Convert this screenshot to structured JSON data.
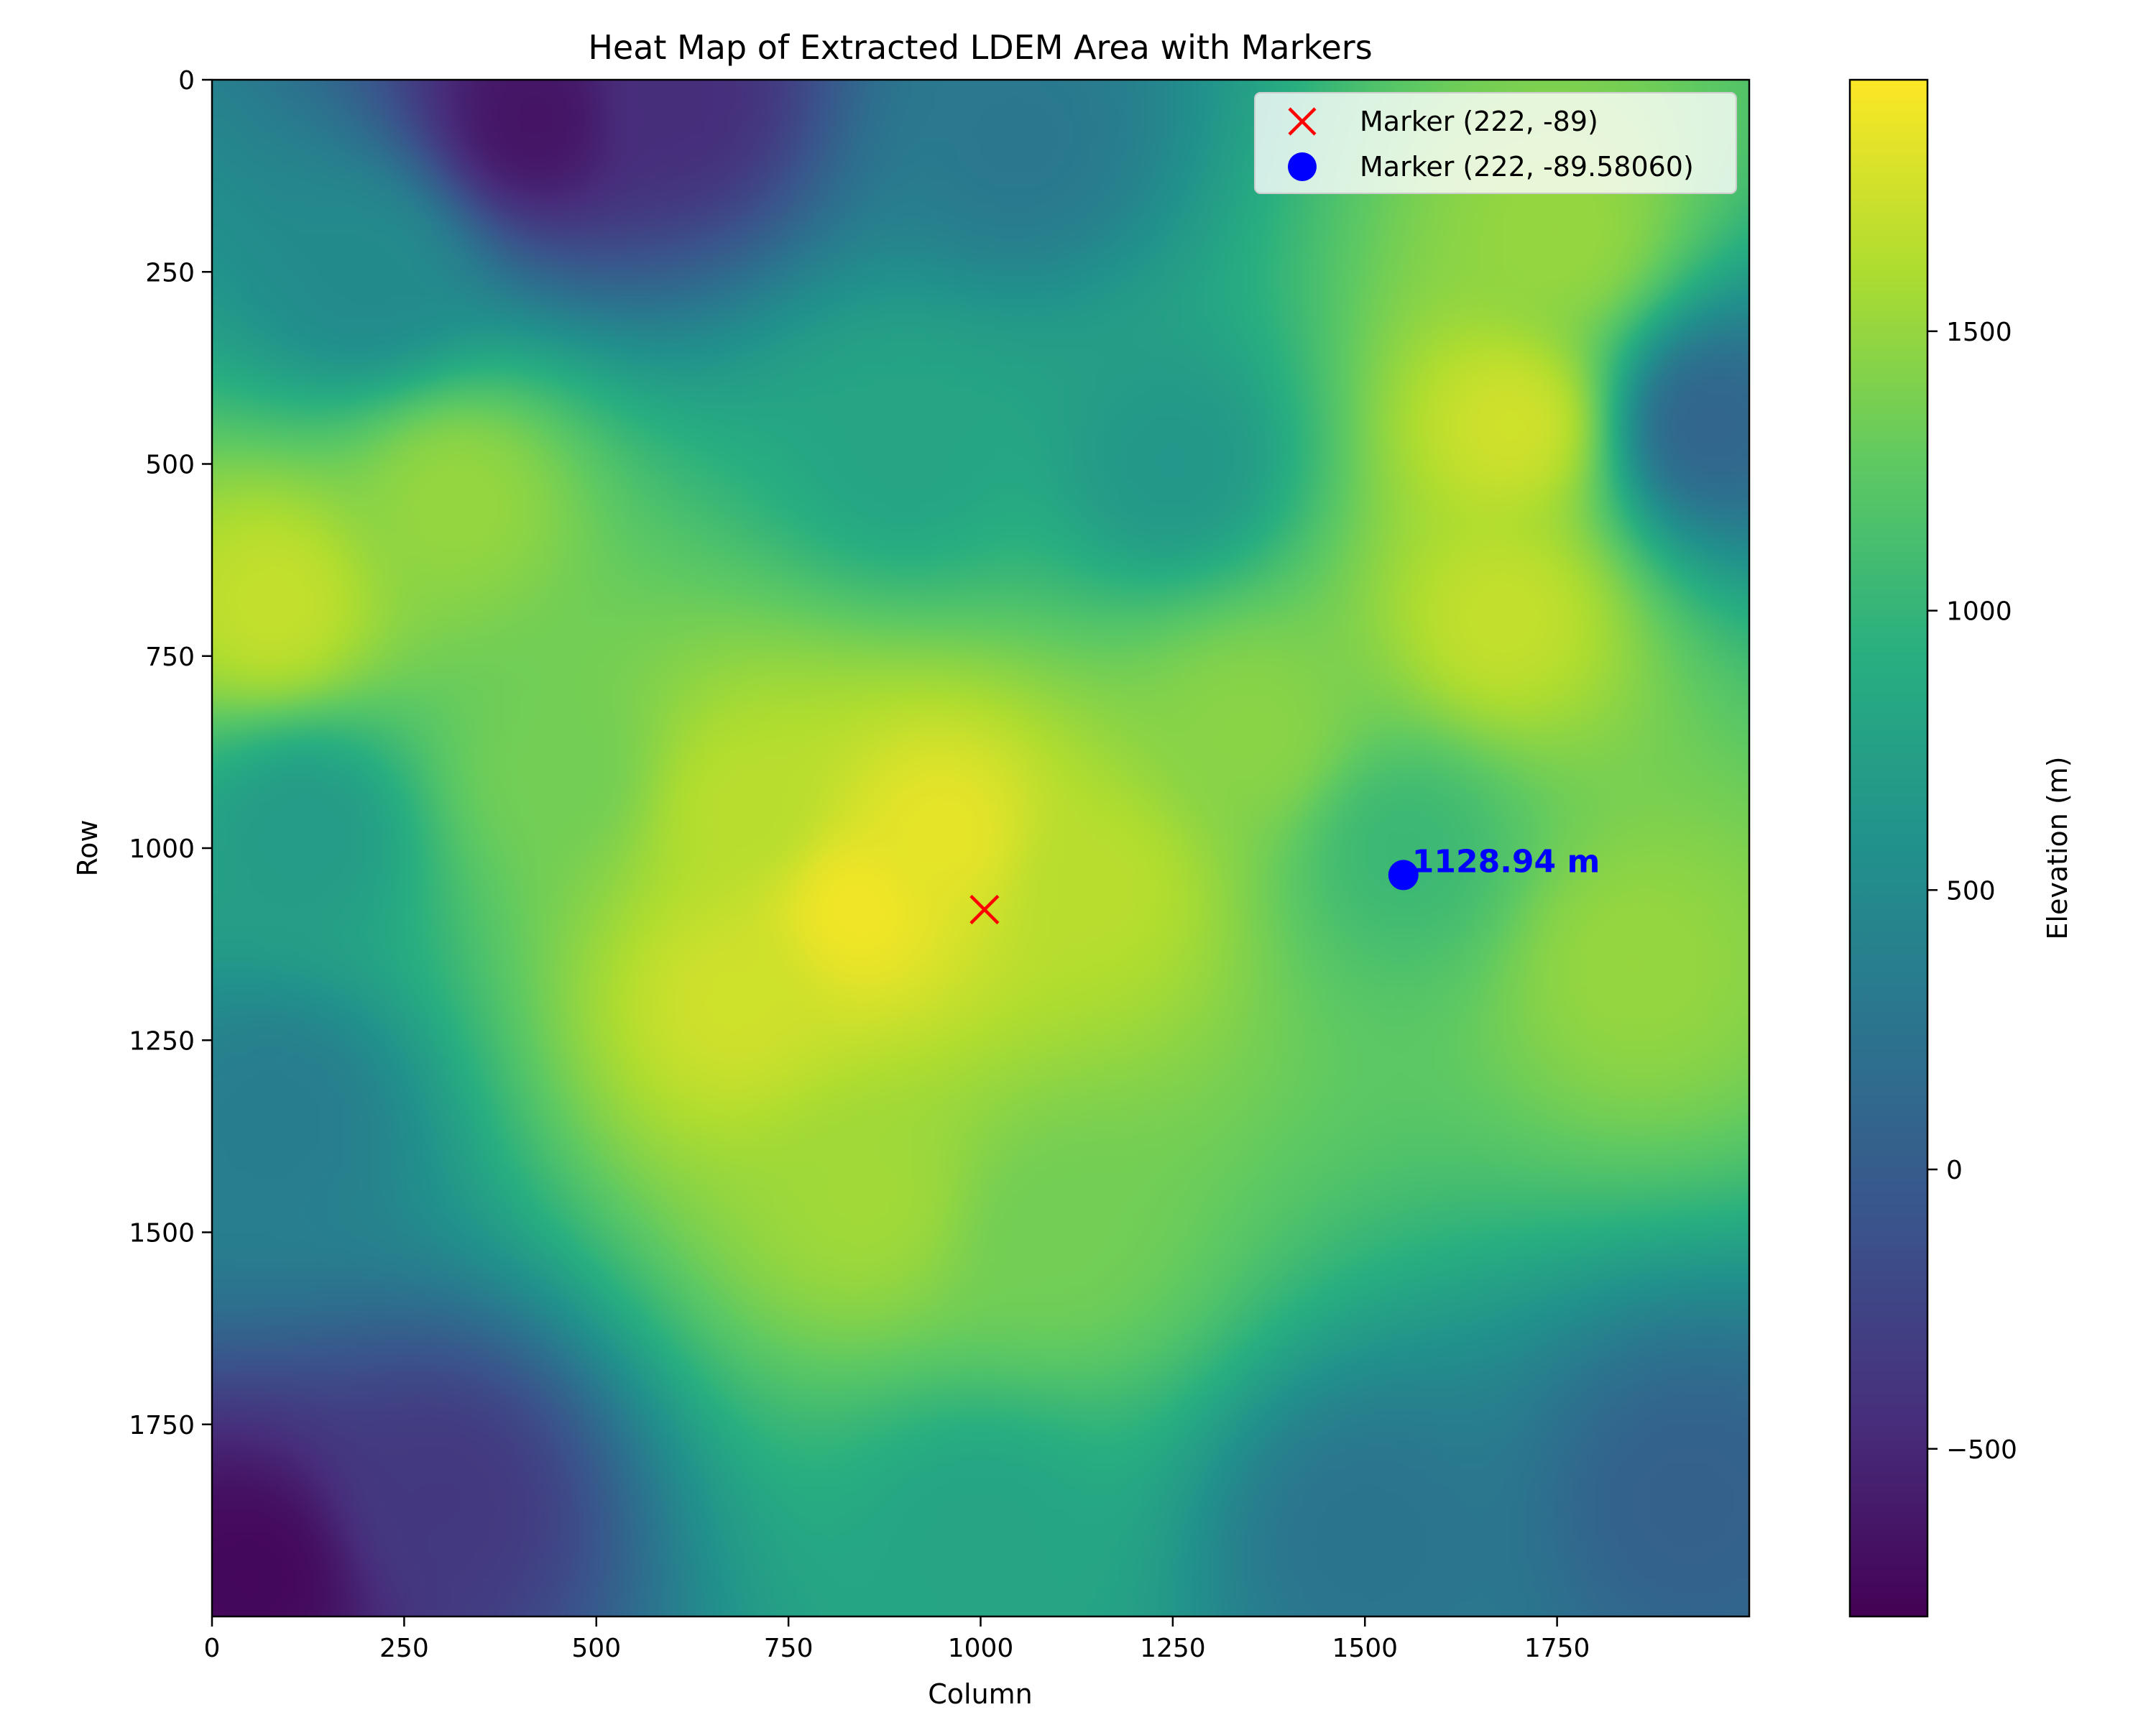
{
  "chart_data": {
    "type": "heatmap",
    "title": "Heat Map of Extracted LDEM Area with Markers",
    "xlabel": "Column",
    "ylabel": "Row",
    "xlim": [
      0,
      2000
    ],
    "ylim": [
      2000,
      0
    ],
    "x_ticks": [
      0,
      250,
      500,
      750,
      1000,
      1250,
      1500,
      1750
    ],
    "y_ticks": [
      0,
      250,
      500,
      750,
      1000,
      1250,
      1500,
      1750
    ],
    "colormap": "viridis",
    "colorbar": {
      "label": "Elevation (m)",
      "range": [
        -800,
        1950
      ],
      "ticks": [
        -500,
        0,
        500,
        1000,
        1500
      ],
      "tick_labels": [
        "−500",
        "0",
        "500",
        "1000",
        "1500"
      ]
    },
    "elevation_features": [
      {
        "col": 840,
        "row": 1080,
        "elevation": 1900
      },
      {
        "col": 950,
        "row": 980,
        "elevation": 1850
      },
      {
        "col": 680,
        "row": 1200,
        "elevation": 1750
      },
      {
        "col": 1150,
        "row": 1050,
        "elevation": 1650
      },
      {
        "col": 700,
        "row": 950,
        "elevation": 1650
      },
      {
        "col": 1690,
        "row": 450,
        "elevation": 1750
      },
      {
        "col": 1680,
        "row": 700,
        "elevation": 1700
      },
      {
        "col": 1750,
        "row": 200,
        "elevation": 1500
      },
      {
        "col": 80,
        "row": 680,
        "elevation": 1700
      },
      {
        "col": 320,
        "row": 550,
        "elevation": 1500
      },
      {
        "col": 850,
        "row": 1450,
        "elevation": 1550
      },
      {
        "col": 1100,
        "row": 1500,
        "elevation": 1350
      },
      {
        "col": 1350,
        "row": 850,
        "elevation": 1450
      },
      {
        "col": 1850,
        "row": 1150,
        "elevation": 1500
      },
      {
        "col": 450,
        "row": 900,
        "elevation": 1350
      },
      {
        "col": 1250,
        "row": 500,
        "elevation": 650
      },
      {
        "col": 900,
        "row": 480,
        "elevation": 800
      },
      {
        "col": 120,
        "row": 980,
        "elevation": 700
      },
      {
        "col": 1550,
        "row": 1000,
        "elevation": 1050
      },
      {
        "col": 420,
        "row": 50,
        "elevation": -650
      },
      {
        "col": 600,
        "row": 30,
        "elevation": -450
      },
      {
        "col": 1050,
        "row": 80,
        "elevation": 300
      },
      {
        "col": 200,
        "row": 250,
        "elevation": 500
      },
      {
        "col": 50,
        "row": 1950,
        "elevation": -750
      },
      {
        "col": 300,
        "row": 1850,
        "elevation": -350
      },
      {
        "col": 1950,
        "row": 450,
        "elevation": 100
      },
      {
        "col": 1920,
        "row": 1850,
        "elevation": 50
      },
      {
        "col": 1500,
        "row": 1900,
        "elevation": 250
      },
      {
        "col": 1000,
        "row": 1900,
        "elevation": 800
      },
      {
        "col": 80,
        "row": 1350,
        "elevation": 350
      }
    ],
    "markers": [
      {
        "label": "Marker (222, -89)",
        "col": 1005,
        "row": 1080,
        "symbol": "x",
        "color": "#ff0000"
      },
      {
        "label": "Marker (222, -89.58060)",
        "col": 1550,
        "row": 1035,
        "symbol": "circle",
        "color": "#0000ff",
        "annotation": "1128.94 m"
      }
    ]
  }
}
